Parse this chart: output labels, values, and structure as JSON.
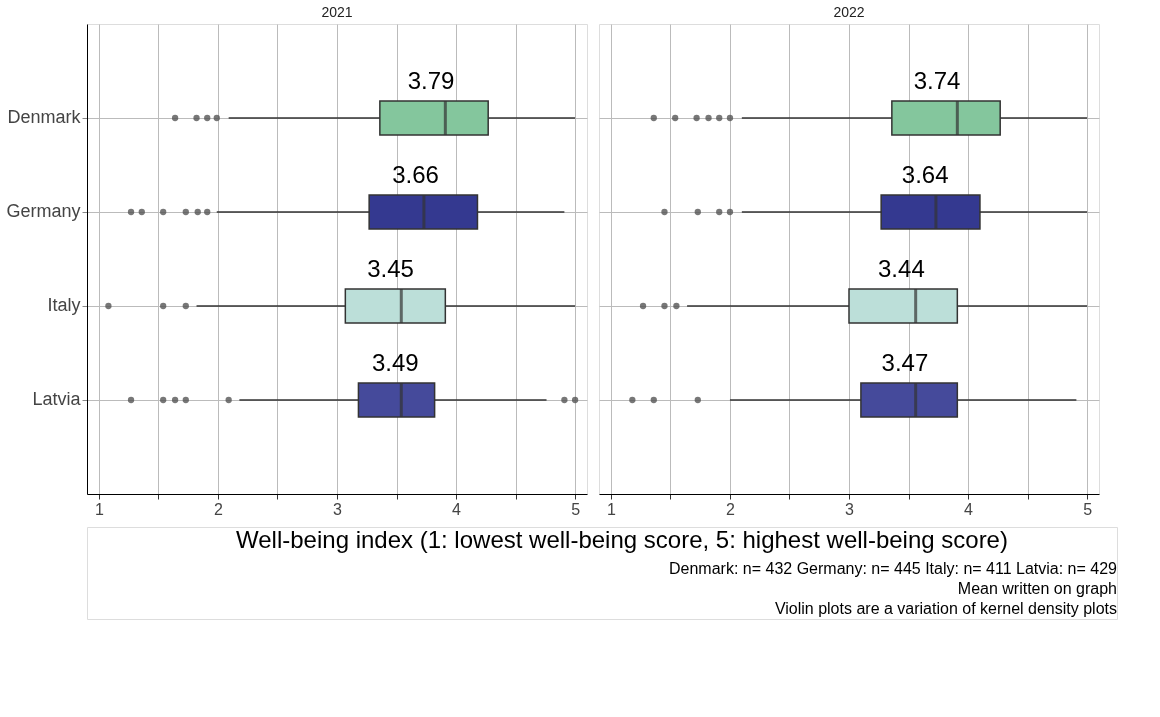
{
  "chart_data": [
    {
      "type": "box",
      "title": "2021",
      "orientation": "horizontal",
      "categories": [
        "Denmark",
        "Germany",
        "Italy",
        "Latvia"
      ],
      "colors": [
        "#84c69d",
        "#343990",
        "#bcdfd9",
        "#454a9b"
      ],
      "boxes": [
        {
          "low": 2.09,
          "q1": 3.36,
          "median": 3.91,
          "q3": 4.27,
          "high": 5,
          "outliers": [
            1.64,
            1.82,
            1.91,
            1.99
          ]
        },
        {
          "low": 1.99,
          "q1": 3.27,
          "median": 3.73,
          "q3": 4.18,
          "high": 4.91,
          "outliers": [
            1.27,
            1.36,
            1.54,
            1.73,
            1.83,
            1.91
          ]
        },
        {
          "low": 1.82,
          "q1": 3.07,
          "median": 3.54,
          "q3": 3.91,
          "high": 5,
          "outliers": [
            1.08,
            1.54,
            1.73
          ]
        },
        {
          "low": 2.18,
          "q1": 3.18,
          "median": 3.54,
          "q3": 3.82,
          "high": 4.76,
          "outliers": [
            1.27,
            1.54,
            1.64,
            1.73,
            2.09,
            4.91,
            5
          ]
        }
      ],
      "xlim": [
        0.9,
        5.1
      ],
      "xticks": [
        1,
        {
          "value": 1.5,
          "label": null
        },
        2,
        {
          "value": 2.5,
          "label": null
        },
        3,
        {
          "value": 3.5,
          "label": null
        },
        4,
        {
          "value": 4.5,
          "label": null
        },
        5
      ],
      "grid": true,
      "xlabel": "Well-being index (1: lowest well-being score, 5: highest well-being score)",
      "annotations": [
        {
          "text": "3.79",
          "x": 3.79,
          "y": "Denmark"
        },
        {
          "text": "3.66",
          "x": 3.66,
          "y": "Germany"
        },
        {
          "text": "3.45",
          "x": 3.45,
          "y": "Italy"
        },
        {
          "text": "3.49",
          "x": 3.49,
          "y": "Latvia"
        }
      ]
    },
    {
      "type": "box",
      "title": "2022",
      "orientation": "horizontal",
      "categories": [
        "Denmark",
        "Germany",
        "Italy",
        "Latvia"
      ],
      "colors": [
        "#84c69d",
        "#343990",
        "#bcdfd9",
        "#454a9b"
      ],
      "boxes": [
        {
          "low": 2.1,
          "q1": 3.36,
          "median": 3.91,
          "q3": 4.27,
          "high": 5,
          "outliers": [
            1.36,
            1.54,
            1.72,
            1.82,
            1.91,
            2.0
          ]
        },
        {
          "low": 2.1,
          "q1": 3.27,
          "median": 3.73,
          "q3": 4.1,
          "high": 5,
          "outliers": [
            1.45,
            1.73,
            1.91,
            2.0
          ]
        },
        {
          "low": 1.64,
          "q1": 3.0,
          "median": 3.56,
          "q3": 3.91,
          "high": 5,
          "outliers": [
            1.27,
            1.45,
            1.55
          ]
        },
        {
          "low": 2.0,
          "q1": 3.1,
          "median": 3.56,
          "q3": 3.91,
          "high": 4.91,
          "outliers": [
            1.18,
            1.36,
            1.73
          ]
        }
      ],
      "xlim": [
        0.9,
        5.1
      ],
      "xticks": [
        1,
        {
          "value": 1.5,
          "label": null
        },
        2,
        {
          "value": 2.5,
          "label": null
        },
        3,
        {
          "value": 3.5,
          "label": null
        },
        4,
        {
          "value": 4.5,
          "label": null
        },
        5
      ],
      "grid": true,
      "tick_labels": "x",
      "annotations": [
        {
          "text": "3.74",
          "x": 3.74,
          "y": "Denmark"
        },
        {
          "text": "3.64",
          "x": 3.64,
          "y": "Germany"
        },
        {
          "text": "3.44",
          "x": 3.44,
          "y": "Italy"
        },
        {
          "text": "3.47",
          "x": 3.47,
          "y": "Latvia"
        },
        "Denmark: n= 432  Germany: n= 445  Italy: n= 411  Latvia: n= 429",
        "Mean written on graph",
        "Violin plots are a variation of kernel density plots"
      ]
    }
  ]
}
